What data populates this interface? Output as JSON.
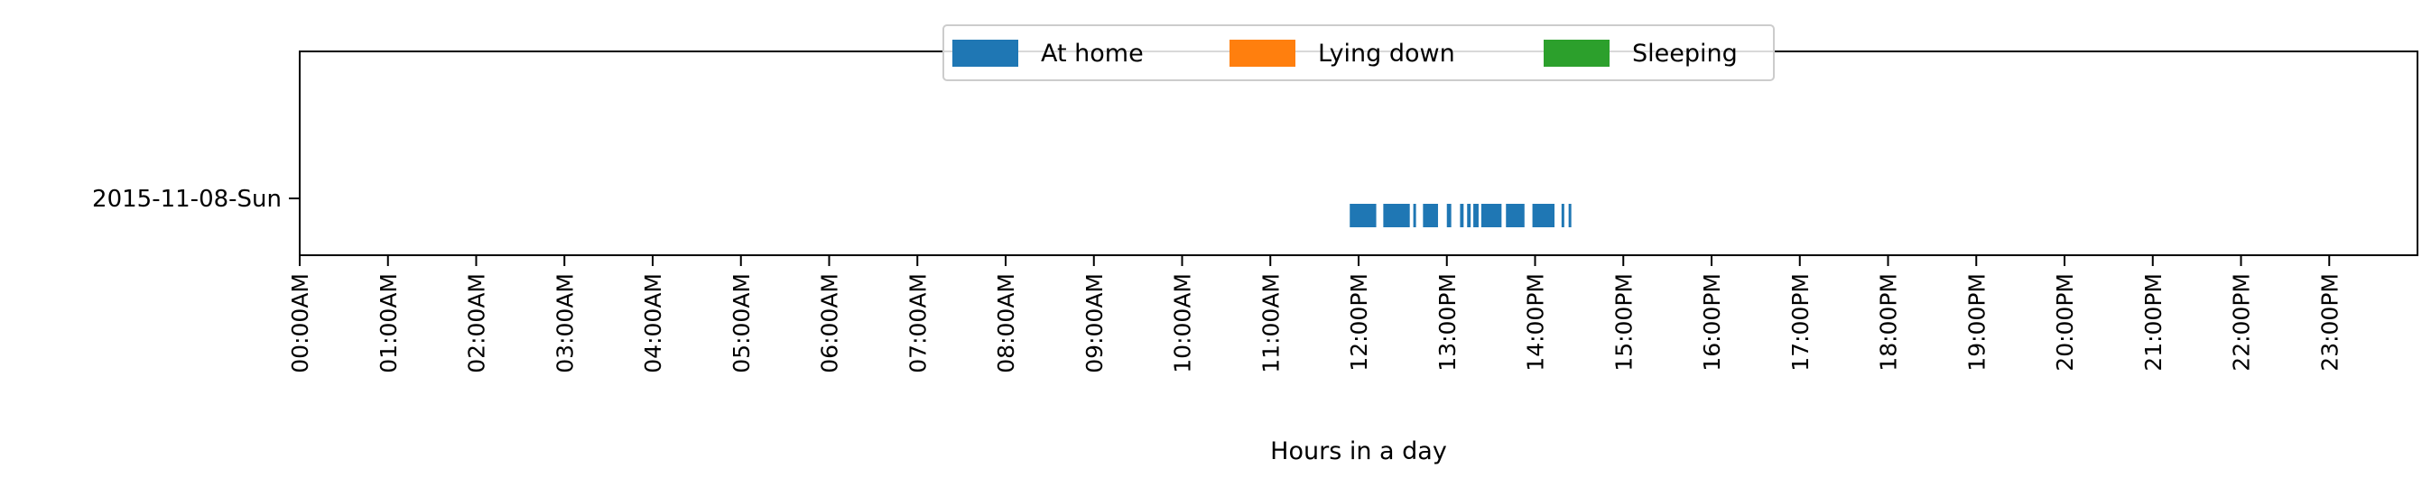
{
  "chart_data": {
    "type": "timeline",
    "xlabel": "Hours in a day",
    "categories": [
      "2015-11-08-Sun"
    ],
    "x_ticks": [
      "00:00AM",
      "01:00AM",
      "02:00AM",
      "03:00AM",
      "04:00AM",
      "05:00AM",
      "06:00AM",
      "07:00AM",
      "08:00AM",
      "09:00AM",
      "10:00AM",
      "11:00AM",
      "12:00PM",
      "13:00PM",
      "14:00PM",
      "15:00PM",
      "16:00PM",
      "17:00PM",
      "18:00PM",
      "19:00PM",
      "20:00PM",
      "21:00PM",
      "22:00PM",
      "23:00PM"
    ],
    "xlim": [
      0,
      24
    ],
    "legend": {
      "placement": "top-center",
      "entries": [
        {
          "name": "At home",
          "color": "#1f77b4"
        },
        {
          "name": "Lying down",
          "color": "#ff7f0e"
        },
        {
          "name": "Sleeping",
          "color": "#2ca02c"
        }
      ]
    },
    "series": [
      {
        "name": "At home",
        "color": "#1f77b4",
        "day": "2015-11-08-Sun",
        "intervals": [
          [
            11.9,
            12.2
          ],
          [
            12.28,
            12.58
          ],
          [
            12.62,
            12.65
          ],
          [
            12.73,
            12.9
          ],
          [
            13.0,
            13.05
          ],
          [
            13.15,
            13.19
          ],
          [
            13.23,
            13.27
          ],
          [
            13.3,
            13.36
          ],
          [
            13.39,
            13.62
          ],
          [
            13.67,
            13.88
          ],
          [
            13.97,
            14.22
          ],
          [
            14.3,
            14.33
          ],
          [
            14.38,
            14.41
          ]
        ]
      },
      {
        "name": "Lying down",
        "color": "#ff7f0e",
        "day": "2015-11-08-Sun",
        "intervals": []
      },
      {
        "name": "Sleeping",
        "color": "#2ca02c",
        "day": "2015-11-08-Sun",
        "intervals": []
      }
    ]
  }
}
